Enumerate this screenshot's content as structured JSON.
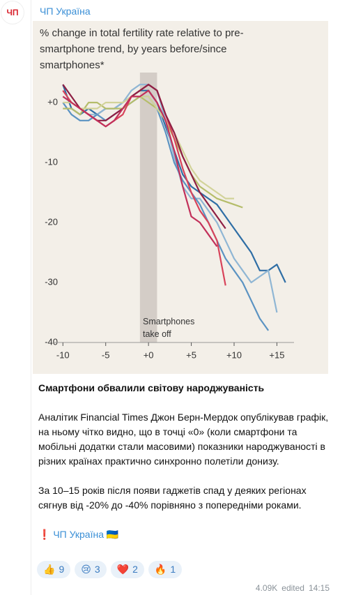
{
  "header": {
    "avatar": "ЧП",
    "channel": "ЧП Україна"
  },
  "chart": {
    "type": "line",
    "title": "% change in total fertility rate relative to pre-smartphone trend, by years before/since smartphones*",
    "annotation": "Smartphones take off",
    "highlight_x": [
      -1,
      1
    ],
    "xlim": [
      -11,
      17
    ],
    "ylim": [
      -40,
      5
    ],
    "xticks": [
      -10,
      -5,
      {
        "value": 0,
        "label": "+0"
      },
      {
        "value": 5,
        "label": "+5"
      },
      {
        "value": 10,
        "label": "+10"
      },
      {
        "value": 15,
        "label": "+15"
      }
    ],
    "yticks": [
      {
        "value": 0,
        "label": "+0"
      },
      -10,
      -20,
      -30,
      -40
    ],
    "x": [
      -10,
      -9,
      -8,
      -7,
      -6,
      -5,
      -4,
      -3,
      -2,
      -1,
      0,
      1,
      2,
      3,
      4,
      5,
      6,
      7,
      8,
      9,
      10,
      11,
      12,
      13,
      14,
      15,
      16
    ],
    "series": [
      {
        "color": "#2f6ea5",
        "values": [
          3,
          -1,
          -2,
          -1,
          -2,
          -1,
          -1,
          0,
          1,
          2,
          2,
          0,
          -4,
          -8,
          -12,
          -14,
          -15,
          -16,
          -17,
          -19,
          -21,
          -23,
          -25,
          -28,
          -28,
          -27,
          -30
        ]
      },
      {
        "color": "#8fb6d4",
        "values": [
          1,
          0,
          -1,
          -2,
          -2,
          -1,
          -1,
          0,
          2,
          3,
          3,
          2,
          -3,
          -9,
          -14,
          -16,
          -16,
          -18,
          -20,
          -23,
          -26,
          -28,
          -30,
          -29,
          -28,
          -35,
          null
        ]
      },
      {
        "color": "#5b93c2",
        "values": [
          0,
          -2,
          -3,
          -3,
          -2,
          -3,
          -2,
          -1,
          0,
          1,
          1,
          -1,
          -5,
          -10,
          -13,
          -15,
          -17,
          -20,
          -23,
          -26,
          -28,
          -30,
          -33,
          -36,
          -38,
          null,
          null
        ]
      },
      {
        "color": "#b5bd6a",
        "values": [
          -1,
          -1,
          -2,
          0,
          0,
          -1,
          -1,
          -1,
          0,
          1,
          0,
          -1,
          -3,
          -6,
          -9,
          -12,
          -14,
          -15,
          -16,
          -16.5,
          -17,
          -17.5,
          null,
          null,
          null,
          null,
          null
        ]
      },
      {
        "color": "#d2d39a",
        "values": [
          0,
          0,
          -1,
          -1,
          -1,
          0,
          0,
          0,
          1,
          1,
          1,
          -1,
          -3,
          -5,
          -8,
          -11,
          -13,
          -14,
          -15,
          -16,
          -16,
          null,
          null,
          null,
          null,
          null,
          null
        ]
      },
      {
        "color": "#d8435a",
        "values": [
          2,
          0,
          -1,
          -2,
          -3,
          -4,
          -3,
          -2,
          1,
          2,
          3,
          2,
          -2,
          -6,
          -11,
          -15,
          -18,
          -20,
          -23,
          -30.5,
          null,
          null,
          null,
          null,
          null,
          null,
          null
        ]
      },
      {
        "color": "#8e1f44",
        "values": [
          3,
          1,
          -1,
          -2,
          -3,
          -3,
          -2,
          -1,
          1,
          2,
          3,
          2,
          -2,
          -5,
          -9,
          -12,
          -15,
          -17,
          -19,
          -21,
          null,
          null,
          null,
          null,
          null,
          null,
          null
        ]
      },
      {
        "color": "#c2305a",
        "values": [
          1,
          0,
          -1,
          -2,
          -3,
          -4,
          -3,
          -1,
          1,
          1,
          2,
          0,
          -3,
          -8,
          -14,
          -19,
          -20,
          -22,
          -24,
          null,
          null,
          null,
          null,
          null,
          null,
          null,
          null
        ]
      }
    ]
  },
  "post": {
    "title": "Смартфони обвалили світову народжуваність",
    "paragraphs": [
      "Аналітик Financial Times Джон Берн-Мердок опублікував графік, на ньому чітко видно, що в точці «0» (коли смартфони та мобільні додатки стали масовими) показники народжуваності в різних країнах практично синхронно полетіли донизу.",
      "За 10–15 років після появи гаджетів спад у деяких регіонах сягнув від -20% до -40% порівняно з попередніми роками."
    ],
    "signature": "❗️ ЧП Україна 🇺🇦"
  },
  "reactions": [
    {
      "emoji": "👍",
      "count": 9
    },
    {
      "emoji": "😢",
      "count": 3
    },
    {
      "emoji": "❤️",
      "count": 2
    },
    {
      "emoji": "🔥",
      "count": 1
    }
  ],
  "footer": {
    "views": "4.09K",
    "edited": "edited",
    "time": "14:15"
  }
}
